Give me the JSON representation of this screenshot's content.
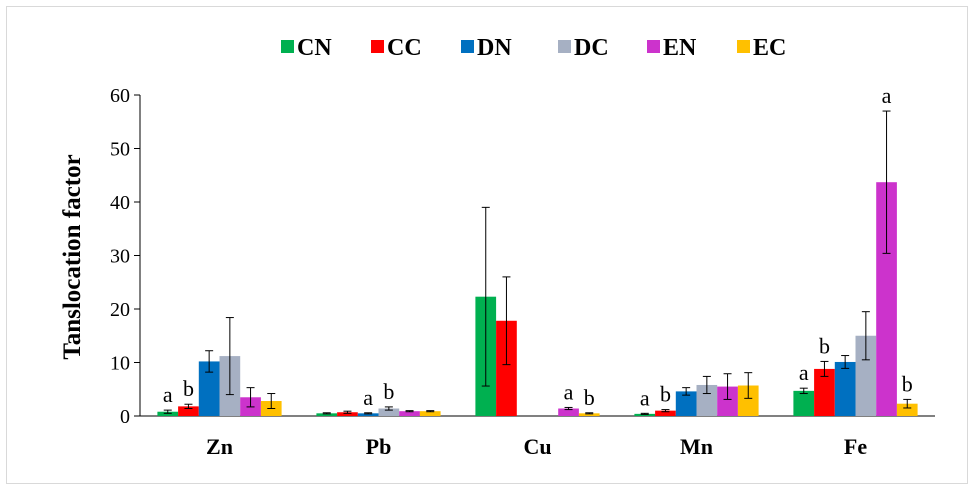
{
  "chart_data": {
    "type": "bar",
    "title": "",
    "xlabel": "",
    "ylabel": "Tanslocation factor",
    "ylim": [
      0,
      60
    ],
    "yticks": [
      0,
      10,
      20,
      30,
      40,
      50,
      60
    ],
    "grid": false,
    "legend_position": "top",
    "categories": [
      "Zn",
      "Pb",
      "Cu",
      "Mn",
      "Fe"
    ],
    "series": [
      {
        "name": "CN",
        "color": "#00b050",
        "values": [
          0.8,
          0.5,
          22.3,
          0.4,
          4.7
        ],
        "errors": [
          0.3,
          0.1,
          16.7,
          0.1,
          0.5
        ],
        "labels": [
          "a",
          "",
          "",
          "a",
          "a"
        ]
      },
      {
        "name": "CC",
        "color": "#ff0000",
        "values": [
          1.8,
          0.7,
          17.8,
          1.0,
          8.8
        ],
        "errors": [
          0.4,
          0.2,
          8.2,
          0.2,
          1.4
        ],
        "labels": [
          "b",
          "",
          "",
          "b",
          "b"
        ]
      },
      {
        "name": "DN",
        "color": "#0070c0",
        "values": [
          10.2,
          0.5,
          0,
          4.6,
          10.1
        ],
        "errors": [
          2.0,
          0.1,
          0,
          0.7,
          1.2
        ],
        "labels": [
          "",
          "a",
          "",
          "",
          ""
        ]
      },
      {
        "name": "DC",
        "color": "#a6b0c3",
        "values": [
          11.2,
          1.4,
          0,
          5.8,
          15.0
        ],
        "errors": [
          7.2,
          0.3,
          0,
          1.6,
          4.5
        ],
        "labels": [
          "",
          "b",
          "",
          "",
          ""
        ]
      },
      {
        "name": "EN",
        "color": "#cc33cc",
        "values": [
          3.5,
          0.9,
          1.4,
          5.5,
          43.7
        ],
        "errors": [
          1.8,
          0.1,
          0.2,
          2.4,
          13.3
        ],
        "labels": [
          "",
          "",
          "a",
          "",
          "a"
        ]
      },
      {
        "name": "EC",
        "color": "#ffc000",
        "values": [
          2.8,
          0.9,
          0.5,
          5.7,
          2.3
        ],
        "errors": [
          1.4,
          0.1,
          0.1,
          2.4,
          0.8
        ],
        "labels": [
          "",
          "",
          "b",
          "",
          "b"
        ]
      }
    ]
  }
}
